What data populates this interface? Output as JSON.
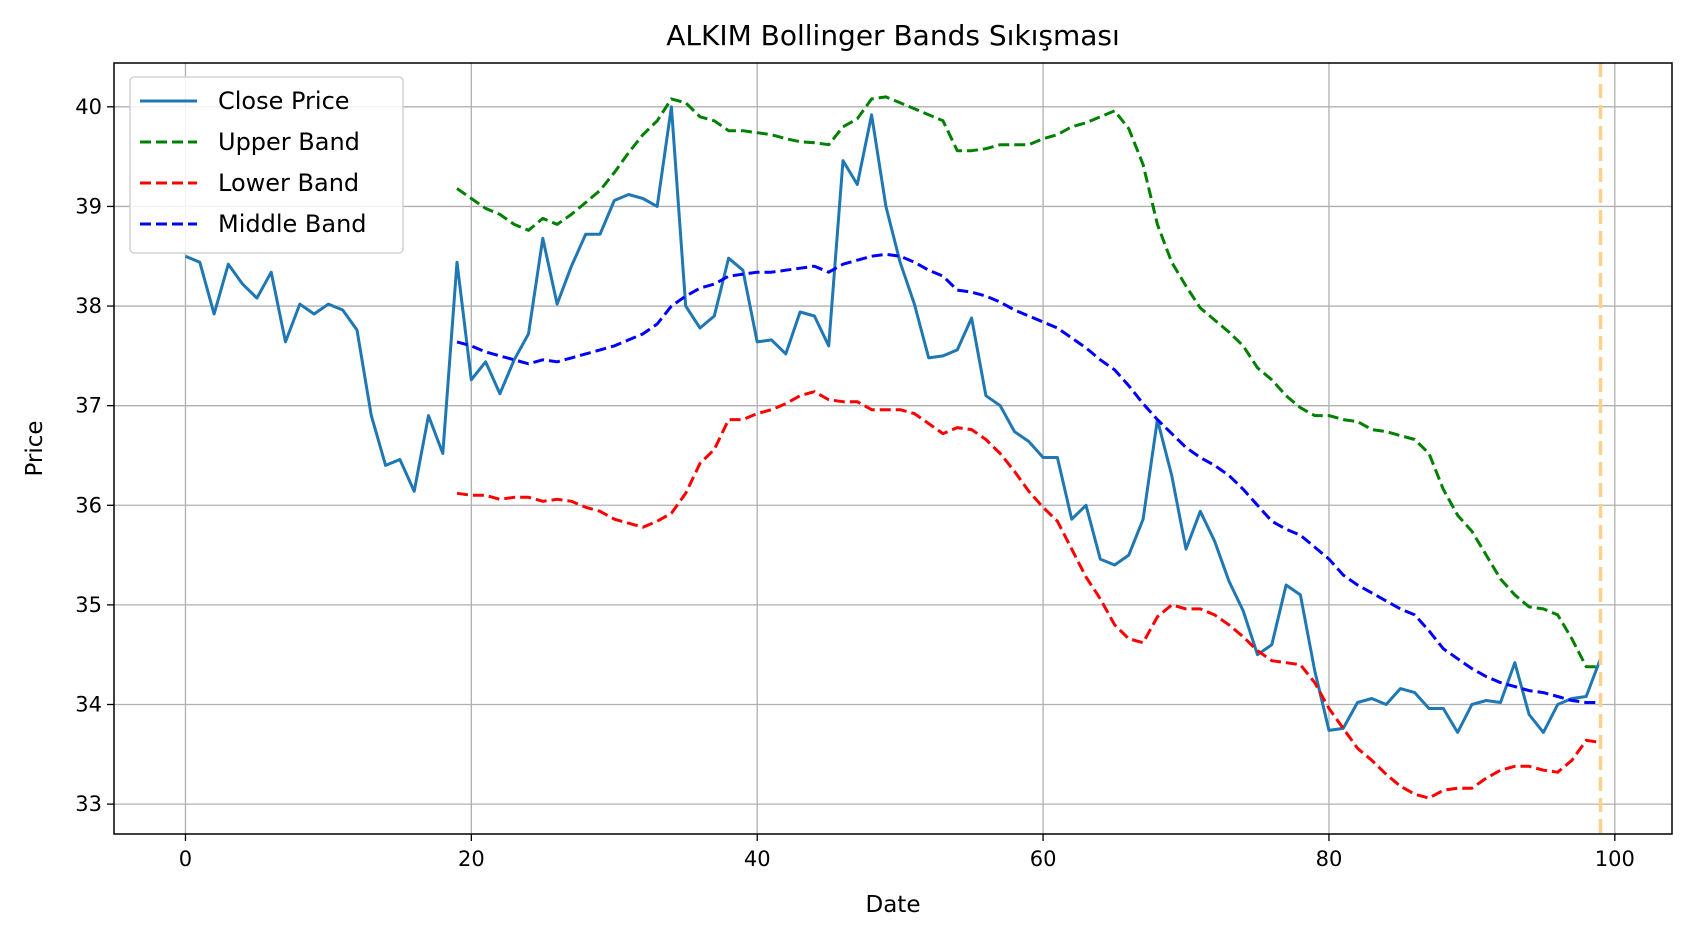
{
  "chart_data": {
    "type": "line",
    "title": "ALKIM Bollinger Bands Sıkışması",
    "xlabel": "Date",
    "ylabel": "Price",
    "xlim": [
      -5,
      104
    ],
    "ylim": [
      32.7,
      40.44
    ],
    "xticks": [
      0,
      20,
      40,
      60,
      80,
      100
    ],
    "yticks": [
      33,
      34,
      35,
      36,
      37,
      38,
      39,
      40
    ],
    "grid": true,
    "legend_position": "top-left",
    "vline": {
      "x": 99,
      "color": "#ffd08a",
      "style": "dashed"
    },
    "series": [
      {
        "name": "Close Price",
        "color": "#1f77b4",
        "dash": "solid",
        "x_start": 0,
        "values": [
          38.5,
          38.44,
          37.92,
          38.42,
          38.22,
          38.08,
          38.34,
          37.64,
          38.02,
          37.92,
          38.02,
          37.96,
          37.76,
          36.9,
          36.4,
          36.46,
          36.14,
          36.9,
          36.52,
          38.44,
          37.26,
          37.44,
          37.12,
          37.46,
          37.72,
          38.68,
          38.02,
          38.4,
          38.72,
          38.72,
          39.06,
          39.12,
          39.08,
          39.0,
          40.0,
          38.0,
          37.78,
          37.9,
          38.48,
          38.36,
          37.64,
          37.66,
          37.52,
          37.94,
          37.9,
          37.6,
          39.46,
          39.22,
          39.92,
          39.0,
          38.44,
          38.02,
          37.48,
          37.5,
          37.56,
          37.88,
          37.1,
          37.0,
          36.74,
          36.64,
          36.48,
          36.48,
          35.86,
          36.0,
          35.46,
          35.4,
          35.5,
          35.86,
          36.86,
          36.3,
          35.56,
          35.94,
          35.64,
          35.24,
          34.94,
          34.5,
          34.6,
          35.2,
          35.1,
          34.34,
          33.74,
          33.76,
          34.02,
          34.06,
          34.0,
          34.16,
          34.12,
          33.96,
          33.96,
          33.72,
          34.0,
          34.04,
          34.02,
          34.42,
          33.9,
          33.72,
          34.0,
          34.06,
          34.08,
          34.46
        ]
      },
      {
        "name": "Upper Band",
        "color": "#008000",
        "dash": "dashed",
        "x_start": 19,
        "values": [
          39.18,
          39.08,
          38.98,
          38.92,
          38.82,
          38.76,
          38.88,
          38.82,
          38.92,
          39.04,
          39.16,
          39.34,
          39.54,
          39.72,
          39.86,
          40.08,
          40.04,
          39.9,
          39.86,
          39.76,
          39.76,
          39.74,
          39.72,
          39.68,
          39.65,
          39.64,
          39.62,
          39.8,
          39.88,
          40.08,
          40.1,
          40.04,
          39.98,
          39.92,
          39.86,
          39.56,
          39.56,
          39.58,
          39.62,
          39.62,
          39.62,
          39.68,
          39.72,
          39.8,
          39.84,
          39.9,
          39.96,
          39.78,
          39.42,
          38.82,
          38.44,
          38.2,
          37.98,
          37.86,
          37.74,
          37.6,
          37.38,
          37.26,
          37.1,
          36.98,
          36.9,
          36.9,
          36.86,
          36.84,
          36.76,
          36.74,
          36.7,
          36.66,
          36.52,
          36.16,
          35.9,
          35.74,
          35.5,
          35.26,
          35.1,
          34.98,
          34.96,
          34.9,
          34.66,
          34.38,
          34.38
        ]
      },
      {
        "name": "Lower Band",
        "color": "#ff0000",
        "dash": "dashed",
        "x_start": 19,
        "values": [
          36.12,
          36.1,
          36.1,
          36.06,
          36.08,
          36.08,
          36.04,
          36.06,
          36.04,
          35.98,
          35.94,
          35.86,
          35.82,
          35.78,
          35.84,
          35.92,
          36.12,
          36.42,
          36.56,
          36.86,
          36.86,
          36.92,
          36.96,
          37.02,
          37.1,
          37.14,
          37.06,
          37.04,
          37.04,
          36.96,
          36.96,
          36.96,
          36.92,
          36.82,
          36.72,
          36.78,
          36.76,
          36.66,
          36.52,
          36.34,
          36.14,
          35.98,
          35.84,
          35.56,
          35.28,
          35.06,
          34.8,
          34.66,
          34.62,
          34.88,
          35.0,
          34.96,
          34.96,
          34.9,
          34.8,
          34.68,
          34.54,
          34.44,
          34.42,
          34.4,
          34.22,
          33.96,
          33.76,
          33.56,
          33.44,
          33.3,
          33.18,
          33.1,
          33.06,
          33.14,
          33.16,
          33.16,
          33.26,
          33.34,
          33.38,
          33.38,
          33.34,
          33.32,
          33.44,
          33.64,
          33.62
        ]
      },
      {
        "name": "Middle Band",
        "color": "#0000ff",
        "dash": "dashed",
        "x_start": 19,
        "values": [
          37.64,
          37.6,
          37.54,
          37.5,
          37.46,
          37.42,
          37.46,
          37.44,
          37.48,
          37.52,
          37.56,
          37.6,
          37.66,
          37.72,
          37.82,
          38.0,
          38.1,
          38.18,
          38.22,
          38.3,
          38.32,
          38.34,
          38.34,
          38.36,
          38.38,
          38.4,
          38.34,
          38.42,
          38.46,
          38.5,
          38.52,
          38.5,
          38.44,
          38.36,
          38.3,
          38.16,
          38.14,
          38.1,
          38.04,
          37.96,
          37.9,
          37.84,
          37.78,
          37.68,
          37.58,
          37.46,
          37.36,
          37.2,
          37.02,
          36.86,
          36.72,
          36.58,
          36.48,
          36.4,
          36.3,
          36.16,
          36.0,
          35.84,
          35.76,
          35.7,
          35.58,
          35.46,
          35.3,
          35.2,
          35.12,
          35.04,
          34.96,
          34.9,
          34.74,
          34.56,
          34.46,
          34.36,
          34.28,
          34.22,
          34.18,
          34.14,
          34.12,
          34.08,
          34.04,
          34.02,
          34.02
        ]
      }
    ]
  }
}
